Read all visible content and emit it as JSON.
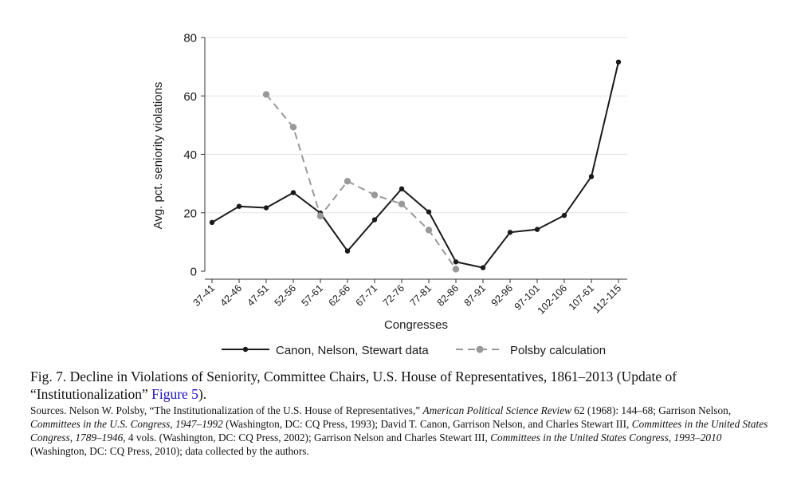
{
  "chart_data": {
    "type": "line",
    "title": "",
    "xlabel": "Congresses",
    "ylabel": "Avg. pct. seniority violations",
    "categories": [
      "37-41",
      "42-46",
      "47-51",
      "52-56",
      "57-61",
      "62-66",
      "67-71",
      "72-76",
      "77-81",
      "82-86",
      "87-91",
      "92-96",
      "97-101",
      "102-106",
      "107-61",
      "112-115"
    ],
    "ylim": [
      0,
      80
    ],
    "yticks": [
      0,
      20,
      40,
      60,
      80
    ],
    "grid": true,
    "legend_position": "bottom",
    "series": [
      {
        "name": "Canon, Nelson, Stewart data",
        "style": "solid",
        "color": "#1a1a1a",
        "values": [
          16.7,
          22.2,
          21.7,
          26.9,
          19.9,
          6.9,
          17.6,
          28.2,
          20.3,
          3.2,
          1.2,
          13.3,
          14.3,
          19.1,
          32.4,
          71.6
        ]
      },
      {
        "name": "Polsby calculation",
        "style": "dashed",
        "color": "#999999",
        "values": [
          null,
          null,
          60.5,
          49.3,
          18.9,
          30.8,
          26.1,
          23.0,
          14.1,
          0.7,
          null,
          null,
          null,
          null,
          null,
          null
        ]
      }
    ]
  },
  "caption": {
    "title_before": "Fig. 7. Decline in Violations of Seniority, Committee Chairs, U.S. House of Representatives, 1861–2013 (Update of “Institutionalization” ",
    "title_link": "Figure 5",
    "title_after": ").",
    "src_1": "Sources. Nelson W. Polsby, “The Institutionalization of the U.S. House of Representatives,” ",
    "src_2_italic": "American Political Science Review",
    "src_3": " 62 (1968): 144–68; Garrison Nelson, ",
    "src_4_italic": "Committees in the U.S. Congress, 1947–1992",
    "src_5": " (Washington, DC: CQ Press, 1993); David T. Canon, Garrison Nelson, and Charles Stewart III, ",
    "src_6_italic": "Committees in the United States Congress, 1789–1946,",
    "src_7": " 4 vols. (Washington, DC: CQ Press, 2002); Garrison Nelson and Charles Stewart III, ",
    "src_8_italic": "Committees in the United States Congress, 1993–2010",
    "src_9": " (Washington, DC: CQ Press, 2010); data collected by the authors."
  }
}
